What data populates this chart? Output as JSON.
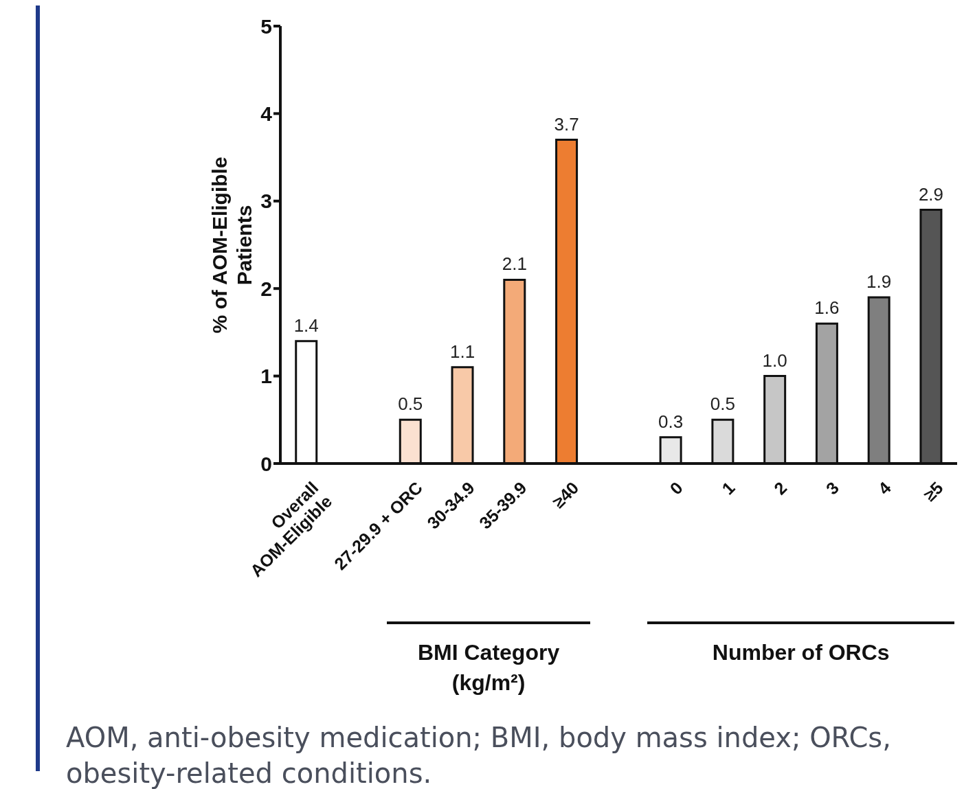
{
  "chart_data": {
    "type": "bar",
    "ylabel": "% of AOM-Eligible Patients",
    "categories": [
      "Overall AOM-Eligible",
      null,
      "27-29.9 + ORC",
      "30-34.9",
      "35-39.9",
      "≥40",
      null,
      "0",
      "1",
      "2",
      "3",
      "4",
      "≥5"
    ],
    "values": [
      1.4,
      null,
      0.5,
      1.1,
      2.1,
      3.7,
      null,
      0.3,
      0.5,
      1.0,
      1.6,
      1.9,
      2.9
    ],
    "value_labels": [
      "1.4",
      null,
      "0.5",
      "1.1",
      "2.1",
      "3.7",
      null,
      "0.3",
      "0.5",
      "1.0",
      "1.6",
      "1.9",
      "2.9"
    ],
    "colors": [
      "#ffffff",
      null,
      "#fbe1d1",
      "#f8c9a8",
      "#f3aa78",
      "#ed7d31",
      null,
      "#e8e8e8",
      "#dadada",
      "#c6c6c6",
      "#a3a3a3",
      "#7f7f7f",
      "#555555"
    ],
    "ylim": [
      0,
      5
    ],
    "yticks": [
      0,
      1,
      2,
      3,
      4,
      5
    ],
    "grid": false,
    "legend": false,
    "annotations": [
      "BMI Category (kg/m²)",
      "Number of ORCs",
      "AOM, anti-obesity medication; BMI, body mass index; ORCs, obesity-related conditions."
    ]
  }
}
